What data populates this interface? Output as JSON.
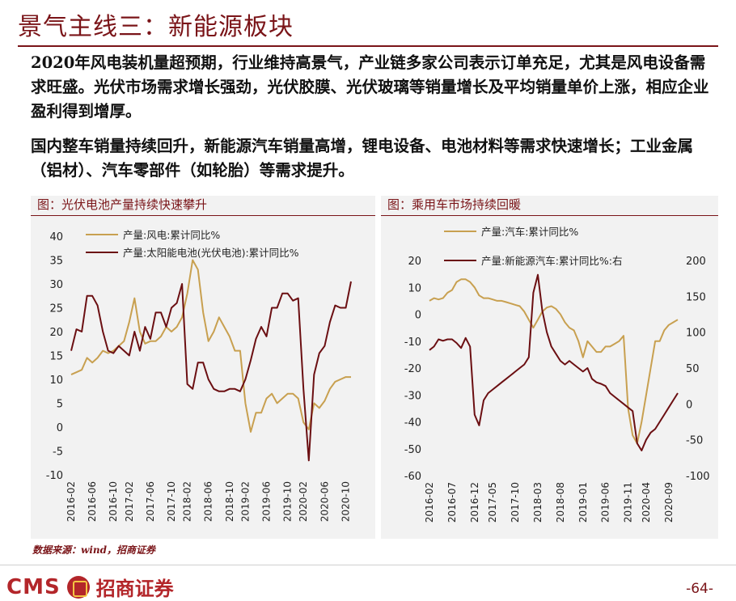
{
  "title": "景气主线三：新能源板块",
  "paragraphs": [
    "2020年风电装机量超预期，行业维持高景气，产业链多家公司表示订单充足，尤其是风电设备需求旺盛。光伏市场需求增长强劲，光伏胶膜、光伏玻璃等销量增长及平均销量单价上涨，相应企业盈利得到增厚。",
    "国内整车销量持续回升，新能源汽车销量高增，锂电设备、电池材料等需求快速增长；工业金属（铝材）、汽车零部件（如轮胎）等需求提升。"
  ],
  "source": "数据来源：wind，招商证券",
  "footer": {
    "logo_text": "CMS",
    "logo_cn": "招商证券",
    "page": "-64-"
  },
  "colors": {
    "brand": "#7a1418",
    "gold": "#c8a050",
    "dark": "#6b0f12"
  },
  "chart_data": [
    {
      "figure_title": "图：光伏电池产量持续快速攀升",
      "type": "line",
      "ylim": [
        -10,
        40
      ],
      "yticks": [
        -10,
        -5,
        0,
        5,
        10,
        15,
        20,
        25,
        30,
        35,
        40
      ],
      "x_tick_labels": [
        "2016-02",
        "2016-06",
        "2016-10",
        "2017-02",
        "2017-06",
        "2017-10",
        "2018-02",
        "2018-06",
        "2018-10",
        "2019-02",
        "2019-06",
        "2019-10",
        "2020-02",
        "2020-06",
        "2020-10"
      ],
      "x": [
        "2016-02",
        "2016-03",
        "2016-04",
        "2016-05",
        "2016-06",
        "2016-07",
        "2016-08",
        "2016-09",
        "2016-10",
        "2016-11",
        "2016-12",
        "2017-02",
        "2017-03",
        "2017-04",
        "2017-05",
        "2017-06",
        "2017-07",
        "2017-08",
        "2017-09",
        "2017-10",
        "2017-11",
        "2017-12",
        "2018-02",
        "2018-03",
        "2018-04",
        "2018-05",
        "2018-06",
        "2018-07",
        "2018-08",
        "2018-09",
        "2018-10",
        "2018-11",
        "2018-12",
        "2019-02",
        "2019-03",
        "2019-04",
        "2019-05",
        "2019-06",
        "2019-07",
        "2019-08",
        "2019-09",
        "2019-10",
        "2019-11",
        "2019-12",
        "2020-02",
        "2020-03",
        "2020-04",
        "2020-05",
        "2020-06",
        "2020-07",
        "2020-08",
        "2020-09",
        "2020-10",
        "2020-11"
      ],
      "series": [
        {
          "name": "产量:风电:累计同比%",
          "color": "#c8a050",
          "values": [
            11,
            11.5,
            12,
            14.5,
            13.5,
            14.5,
            16,
            15.5,
            16,
            17,
            18,
            22,
            27,
            20,
            17.5,
            18,
            18,
            19,
            21,
            20,
            21,
            23,
            28,
            35,
            33,
            24,
            18,
            20,
            23,
            21,
            19,
            16,
            16,
            5,
            -1,
            3,
            3,
            6,
            7,
            5,
            6,
            7,
            7,
            6,
            1,
            -0.5,
            5,
            4,
            5.5,
            8,
            9.5,
            10,
            10.5,
            10.5
          ]
        },
        {
          "name": "产量:太阳能电池(光伏电池):累计同比%",
          "color": "#6b0f12",
          "values": [
            16,
            20.5,
            20,
            27.5,
            27.5,
            25.5,
            20,
            16,
            15.5,
            17,
            16,
            15,
            20,
            16,
            21,
            18.5,
            24,
            24,
            21,
            25,
            26,
            30,
            9,
            8,
            13.5,
            13.5,
            10,
            8,
            7.5,
            7.5,
            8,
            8,
            7.5,
            10,
            14,
            18.5,
            21,
            19,
            25,
            25,
            28,
            28,
            26.5,
            27,
            8,
            -7,
            11,
            15.5,
            17,
            22,
            25.5,
            25,
            25,
            30.5
          ]
        }
      ],
      "grid": false,
      "legend": "top-left"
    },
    {
      "figure_title": "图：乘用车市场持续回暖",
      "type": "line",
      "ylim": [
        -60,
        20
      ],
      "yticks": [
        -60,
        -50,
        -40,
        -30,
        -20,
        -10,
        0,
        10,
        20
      ],
      "y2lim": [
        -100,
        200
      ],
      "y2ticks": [
        -100,
        -50,
        0,
        50,
        100,
        150,
        200
      ],
      "x_tick_labels": [
        "2016-02",
        "2016-07",
        "2016-12",
        "2017-05",
        "2017-10",
        "2018-03",
        "2018-08",
        "2019-01",
        "2019-06",
        "2019-11",
        "2020-04",
        "2020-09"
      ],
      "x": [
        "2016-02",
        "2016-03",
        "2016-04",
        "2016-05",
        "2016-06",
        "2016-07",
        "2016-08",
        "2016-09",
        "2016-10",
        "2016-11",
        "2016-12",
        "2017-02",
        "2017-03",
        "2017-04",
        "2017-05",
        "2017-06",
        "2017-07",
        "2017-08",
        "2017-09",
        "2017-10",
        "2017-11",
        "2017-12",
        "2018-01",
        "2018-02",
        "2018-03",
        "2018-04",
        "2018-05",
        "2018-06",
        "2018-07",
        "2018-08",
        "2018-09",
        "2018-10",
        "2018-11",
        "2018-12",
        "2019-01",
        "2019-02",
        "2019-03",
        "2019-04",
        "2019-05",
        "2019-06",
        "2019-07",
        "2019-08",
        "2019-09",
        "2019-10",
        "2019-11",
        "2019-12",
        "2020-02",
        "2020-03",
        "2020-04",
        "2020-05",
        "2020-06",
        "2020-07",
        "2020-08",
        "2020-09",
        "2020-10",
        "2020-11"
      ],
      "series": [
        {
          "name": "产量:汽车:累计同比%",
          "color": "#c8a050",
          "axis": "left",
          "values": [
            5,
            6,
            5.5,
            6,
            8,
            9,
            12,
            13,
            13,
            12,
            10,
            7,
            6,
            6,
            5.5,
            5,
            5,
            4.5,
            4,
            3.5,
            3,
            1,
            -2,
            -5,
            -2,
            1,
            2.5,
            3,
            2,
            0,
            -3,
            -5,
            -6,
            -10,
            -16,
            -10,
            -12,
            -14,
            -14,
            -12,
            -12,
            -11,
            -10,
            -8,
            -35,
            -45,
            -48,
            -40,
            -30,
            -20,
            -10,
            -10,
            -6,
            -4,
            -3,
            -2
          ]
        },
        {
          "name": "产量:新能源汽车:累计同比%:右",
          "color": "#6b0f12",
          "axis": "right",
          "values": [
            75,
            80,
            90,
            88,
            90,
            90,
            85,
            78,
            92,
            80,
            -15,
            -30,
            5,
            15,
            20,
            25,
            30,
            35,
            40,
            45,
            50,
            55,
            65,
            155,
            180,
            130,
            100,
            80,
            70,
            60,
            55,
            60,
            55,
            50,
            45,
            50,
            35,
            30,
            28,
            25,
            15,
            10,
            5,
            0,
            -5,
            -10,
            -55,
            -65,
            -50,
            -40,
            -35,
            -25,
            -15,
            -5,
            5,
            15
          ]
        }
      ],
      "grid": false,
      "legend": "top-left"
    }
  ]
}
